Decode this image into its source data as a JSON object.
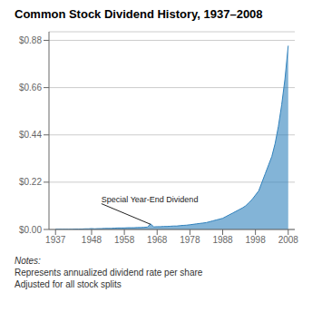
{
  "chart_data": {
    "type": "area",
    "title": "Common Stock Dividend History, 1937–2008",
    "x": [
      1937,
      1938,
      1939,
      1940,
      1941,
      1942,
      1943,
      1944,
      1945,
      1946,
      1947,
      1948,
      1949,
      1950,
      1951,
      1952,
      1953,
      1954,
      1955,
      1956,
      1957,
      1958,
      1959,
      1960,
      1961,
      1962,
      1963,
      1964,
      1965,
      1966,
      1967,
      1968,
      1969,
      1970,
      1971,
      1972,
      1973,
      1974,
      1975,
      1976,
      1977,
      1978,
      1979,
      1980,
      1981,
      1982,
      1983,
      1984,
      1985,
      1986,
      1987,
      1988,
      1989,
      1990,
      1991,
      1992,
      1993,
      1994,
      1995,
      1996,
      1997,
      1998,
      1999,
      2000,
      2001,
      2002,
      2003,
      2004,
      2005,
      2006,
      2007,
      2008
    ],
    "values": [
      0.001,
      0.001,
      0.001,
      0.001,
      0.001,
      0.001,
      0.002,
      0.002,
      0.002,
      0.003,
      0.003,
      0.004,
      0.003,
      0.004,
      0.004,
      0.005,
      0.005,
      0.005,
      0.006,
      0.007,
      0.007,
      0.007,
      0.008,
      0.008,
      0.008,
      0.009,
      0.009,
      0.01,
      0.011,
      0.026,
      0.012,
      0.013,
      0.013,
      0.014,
      0.014,
      0.015,
      0.016,
      0.016,
      0.018,
      0.019,
      0.02,
      0.022,
      0.024,
      0.026,
      0.028,
      0.03,
      0.032,
      0.036,
      0.04,
      0.044,
      0.048,
      0.052,
      0.06,
      0.068,
      0.076,
      0.084,
      0.092,
      0.1,
      0.11,
      0.125,
      0.14,
      0.16,
      0.18,
      0.22,
      0.26,
      0.3,
      0.34,
      0.4,
      0.48,
      0.58,
      0.7,
      0.855
    ],
    "xlim": [
      1935,
      2010
    ],
    "xticks": [
      1937,
      1948,
      1958,
      1968,
      1978,
      1988,
      1998,
      2008
    ],
    "ylim": [
      0,
      0.92
    ],
    "yticks": [
      {
        "value": 0.0,
        "label": "$0.00"
      },
      {
        "value": 0.22,
        "label": "$0.22"
      },
      {
        "value": 0.44,
        "label": "$0.44"
      },
      {
        "value": 0.66,
        "label": "$0.66"
      },
      {
        "value": 0.88,
        "label": "$0.88"
      }
    ],
    "grid": true,
    "annotations": [
      {
        "text": "Special Year-End Dividend",
        "x": 1966,
        "y": 0.024,
        "text_x": 1951,
        "text_y": 0.12
      }
    ],
    "notes": [
      "Notes:",
      "Represents annualized dividend rate per share",
      "Adjusted for all stock splits"
    ]
  }
}
